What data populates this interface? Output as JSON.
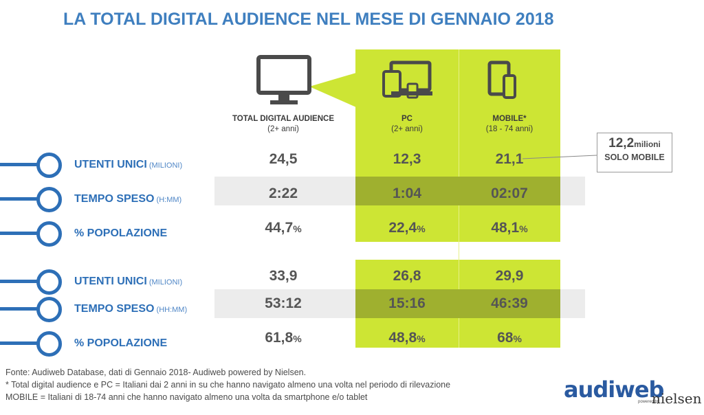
{
  "title": "LA TOTAL DIGITAL AUDIENCE NEL MESE DI GENNAIO 2018",
  "columns": [
    {
      "label": "TOTAL DIGITAL AUDIENCE",
      "sub": "(2+ anni)",
      "icon": "monitor-icon"
    },
    {
      "label": "PC",
      "sub": "(2+ anni)",
      "icon": "devices-icon"
    },
    {
      "label": "MOBILE*",
      "sub": "(18 - 74 anni)",
      "icon": "tablet-phone-icon"
    }
  ],
  "callout": {
    "value": "12,2",
    "unit": "milioni",
    "label": "SOLO MOBILE"
  },
  "chart_data": {
    "type": "table",
    "title": "LA TOTAL DIGITAL AUDIENCE NEL MESE DI GENNAIO 2018",
    "columns": [
      "TOTAL DIGITAL AUDIENCE (2+ anni)",
      "PC (2+ anni)",
      "MOBILE* (18 - 74 anni)"
    ],
    "rows": [
      {
        "label": "UTENTI UNICI",
        "unit": "(MILIONI)",
        "values": [
          "24,5",
          "12,3",
          "21,1"
        ],
        "pct": false
      },
      {
        "label": "TEMPO SPESO",
        "unit": "(H:MM)",
        "values": [
          "2:22",
          "1:04",
          "02:07"
        ],
        "pct": false
      },
      {
        "label": "% POPOLAZIONE",
        "unit": "",
        "values": [
          "44,7",
          "22,4",
          "48,1"
        ],
        "pct": true
      },
      {
        "label": "UTENTI UNICI",
        "unit": "(MILIONI)",
        "values": [
          "33,9",
          "26,8",
          "29,9"
        ],
        "pct": false
      },
      {
        "label": "TEMPO SPESO",
        "unit": "(HH:MM)",
        "values": [
          "53:12",
          "15:16",
          "46:39"
        ],
        "pct": false
      },
      {
        "label": "% POPOLAZIONE",
        "unit": "",
        "values": [
          "61,8",
          "48,8",
          "68"
        ],
        "pct": true
      }
    ],
    "pct_symbol": "%"
  },
  "notes": [
    "Fonte: Audiweb Database, dati di Gennaio 2018- Audiweb powered by Nielsen.",
    "* Total digital audience e PC = Italiani dai 2 anni in su che hanno navigato almeno una volta nel periodo di rilevazione",
    "MOBILE = Italiani di 18-74 anni che hanno navigato almeno una volta da smartphone e/o tablet"
  ],
  "logo": {
    "audiweb": "audiweb",
    "powered": "powered by",
    "nielsen": "nielsen"
  },
  "colors": {
    "accent": "#2d6fb7",
    "green": "#cde534",
    "green_dark": "#9fb02f",
    "band": "#ececec"
  }
}
